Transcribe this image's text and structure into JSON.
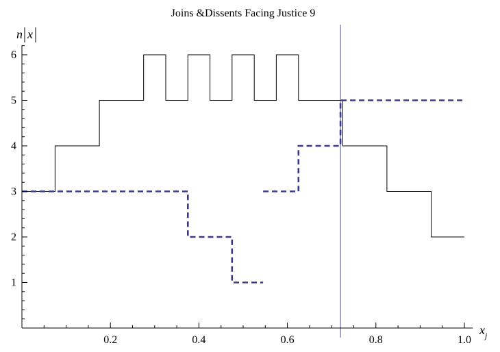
{
  "chart_data": {
    "type": "line",
    "title": "Joins &Dissents Facing Justice 9",
    "ylabel_parts": [
      "n",
      "x"
    ],
    "xlabel_main": "x",
    "xlabel_sub": "j",
    "xlim": [
      0,
      1.0
    ],
    "ylim": [
      0,
      6.2
    ],
    "x_ticks": [
      {
        "value": 0.2,
        "label": "0.2"
      },
      {
        "value": 0.4,
        "label": "0.4"
      },
      {
        "value": 0.6,
        "label": "0.6"
      },
      {
        "value": 0.8,
        "label": "0.8"
      },
      {
        "value": 1.0,
        "label": "1.0"
      }
    ],
    "y_ticks": [
      {
        "value": 1,
        "label": "1"
      },
      {
        "value": 2,
        "label": "2"
      },
      {
        "value": 3,
        "label": "3"
      },
      {
        "value": 4,
        "label": "4"
      },
      {
        "value": 5,
        "label": "5"
      },
      {
        "value": 6,
        "label": "6"
      }
    ],
    "vertical_line_x": 0.72,
    "series": [
      {
        "style": "solid",
        "color": "#000000",
        "points": [
          [
            0,
            3
          ],
          [
            0.075,
            3
          ],
          [
            0.075,
            4
          ],
          [
            0.175,
            4
          ],
          [
            0.175,
            5
          ],
          [
            0.275,
            5
          ],
          [
            0.275,
            6
          ],
          [
            0.325,
            6
          ],
          [
            0.325,
            5
          ],
          [
            0.375,
            5
          ],
          [
            0.375,
            6
          ],
          [
            0.425,
            6
          ],
          [
            0.425,
            5
          ],
          [
            0.475,
            5
          ],
          [
            0.475,
            6
          ],
          [
            0.525,
            6
          ],
          [
            0.525,
            5
          ],
          [
            0.575,
            5
          ],
          [
            0.575,
            6
          ],
          [
            0.625,
            6
          ],
          [
            0.625,
            5
          ],
          [
            0.725,
            5
          ],
          [
            0.725,
            4
          ],
          [
            0.825,
            4
          ],
          [
            0.825,
            3
          ],
          [
            0.925,
            3
          ],
          [
            0.925,
            2
          ],
          [
            1.0,
            2
          ]
        ]
      },
      {
        "style": "dashed",
        "color": "#3a3a8c",
        "points": [
          [
            0,
            3
          ],
          [
            0.375,
            3
          ],
          [
            0.375,
            2
          ],
          [
            0.475,
            2
          ],
          [
            0.475,
            1
          ],
          [
            0.545,
            1
          ]
        ]
      },
      {
        "style": "dashed",
        "color": "#3a3a8c",
        "points": [
          [
            0.545,
            3
          ],
          [
            0.625,
            3
          ],
          [
            0.625,
            4
          ],
          [
            0.72,
            4
          ],
          [
            0.72,
            5
          ],
          [
            1.0,
            5
          ]
        ]
      }
    ]
  }
}
